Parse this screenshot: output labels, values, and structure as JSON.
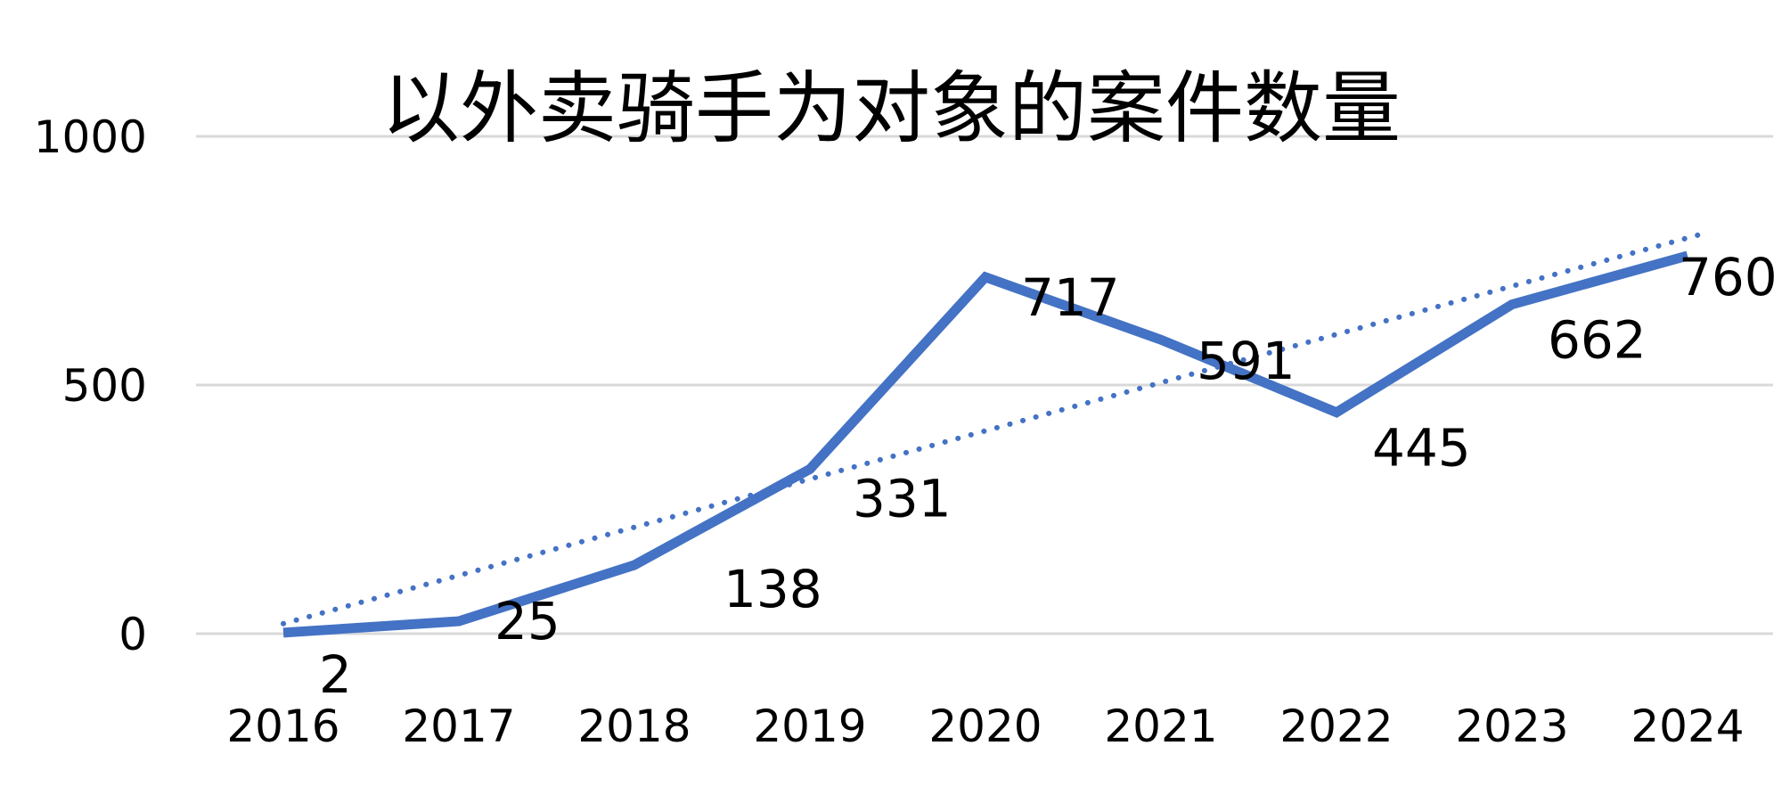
{
  "chart_data": {
    "type": "line",
    "title": "以外卖骑手为对象的案件数量",
    "xlabel": "",
    "ylabel": "",
    "categories": [
      "2016",
      "2017",
      "2018",
      "2019",
      "2020",
      "2021",
      "2022",
      "2023",
      "2024"
    ],
    "series": [
      {
        "values": [
          2,
          25,
          138,
          331,
          717,
          591,
          445,
          662,
          760
        ],
        "color": "#4472c4",
        "data_labels": [
          "2",
          "25",
          "138",
          "331",
          "717",
          "591",
          "445",
          "662",
          "760"
        ]
      }
    ],
    "trendline": {
      "type": "linear",
      "style": "dotted",
      "color": "#4472c4"
    },
    "ylim": [
      0,
      1000
    ],
    "yticks": [
      "0",
      "500",
      "1000"
    ],
    "grid": true,
    "legend": "none"
  }
}
